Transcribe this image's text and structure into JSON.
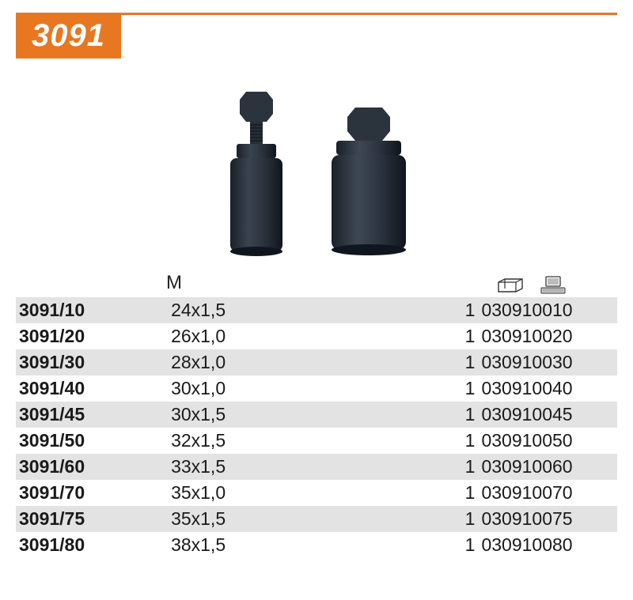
{
  "product": {
    "title": "3091",
    "title_bg": "#e87722",
    "title_fg": "#ffffff"
  },
  "columns": {
    "m_label": "M"
  },
  "rows": [
    {
      "model": "3091/10",
      "m": "24x1,5",
      "qty": "1",
      "code": "030910010"
    },
    {
      "model": "3091/20",
      "m": "26x1,0",
      "qty": "1",
      "code": "030910020"
    },
    {
      "model": "3091/30",
      "m": "28x1,0",
      "qty": "1",
      "code": "030910030"
    },
    {
      "model": "3091/40",
      "m": "30x1,0",
      "qty": "1",
      "code": "030910040"
    },
    {
      "model": "3091/45",
      "m": "30x1,5",
      "qty": "1",
      "code": "030910045"
    },
    {
      "model": "3091/50",
      "m": "32x1,5",
      "qty": "1",
      "code": "030910050"
    },
    {
      "model": "3091/60",
      "m": "33x1,5",
      "qty": "1",
      "code": "030910060"
    },
    {
      "model": "3091/70",
      "m": "35x1,0",
      "qty": "1",
      "code": "030910070"
    },
    {
      "model": "3091/75",
      "m": "35x1,5",
      "qty": "1",
      "code": "030910075"
    },
    {
      "model": "3091/80",
      "m": "38x1,5",
      "qty": "1",
      "code": "030910080"
    }
  ],
  "styling": {
    "row_shade": "#e3e3e3",
    "row_plain": "#ffffff",
    "text_color": "#1a1a1a",
    "font_size_pt": 17
  }
}
